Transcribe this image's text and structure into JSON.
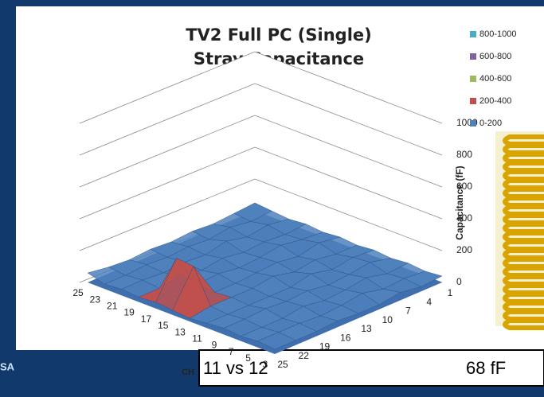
{
  "chart_data": {
    "type": "surface",
    "title": [
      "TV2 Full PC (Single)",
      "Stray Capacitance"
    ],
    "z_label": "Capacitance (fF)",
    "x_categories": [
      "25",
      "23",
      "21",
      "19",
      "17",
      "15",
      "13",
      "11",
      "9",
      "7",
      "5",
      "3"
    ],
    "depth_categories": [
      "1",
      "4",
      "7",
      "10",
      "13",
      "16",
      "19",
      "22",
      "25"
    ],
    "zlim": [
      0,
      1000
    ],
    "zticks": [
      0,
      200,
      400,
      600,
      800,
      1000
    ],
    "grid": true,
    "bands": [
      {
        "name": "800-1000",
        "color": "#4bacc6",
        "range": [
          800,
          1000
        ]
      },
      {
        "name": "600-800",
        "color": "#8064a2",
        "range": [
          600,
          800
        ]
      },
      {
        "name": "400-600",
        "color": "#9bbb59",
        "range": [
          400,
          600
        ]
      },
      {
        "name": "200-400",
        "color": "#c0504d",
        "range": [
          200,
          400
        ]
      },
      {
        "name": "0-200",
        "color": "#4f81bd",
        "range": [
          0,
          200
        ]
      }
    ],
    "z": [
      [
        50,
        40,
        30,
        40,
        30,
        40,
        30,
        40,
        30,
        40,
        30,
        40
      ],
      [
        40,
        30,
        50,
        30,
        40,
        60,
        30,
        50,
        60,
        30,
        40,
        30
      ],
      [
        30,
        50,
        30,
        40,
        60,
        30,
        50,
        30,
        40,
        60,
        30,
        50
      ],
      [
        40,
        30,
        60,
        30,
        40,
        50,
        30,
        60,
        30,
        40,
        60,
        30
      ],
      [
        30,
        40,
        30,
        50,
        30,
        40,
        60,
        30,
        50,
        30,
        40,
        30
      ],
      [
        40,
        30,
        40,
        30,
        50,
        30,
        40,
        30,
        40,
        50,
        30,
        40
      ],
      [
        30,
        40,
        30,
        60,
        40,
        30,
        40,
        30,
        50,
        30,
        40,
        30
      ],
      [
        40,
        30,
        40,
        30,
        260,
        250,
        40,
        30,
        40,
        30,
        40,
        30
      ],
      [
        60,
        30,
        40,
        30,
        40,
        30,
        20,
        30,
        40,
        30,
        40,
        30
      ]
    ],
    "ch_label": "CH",
    "readout": {
      "pair": "11 vs 12",
      "value": "68 fF"
    }
  }
}
